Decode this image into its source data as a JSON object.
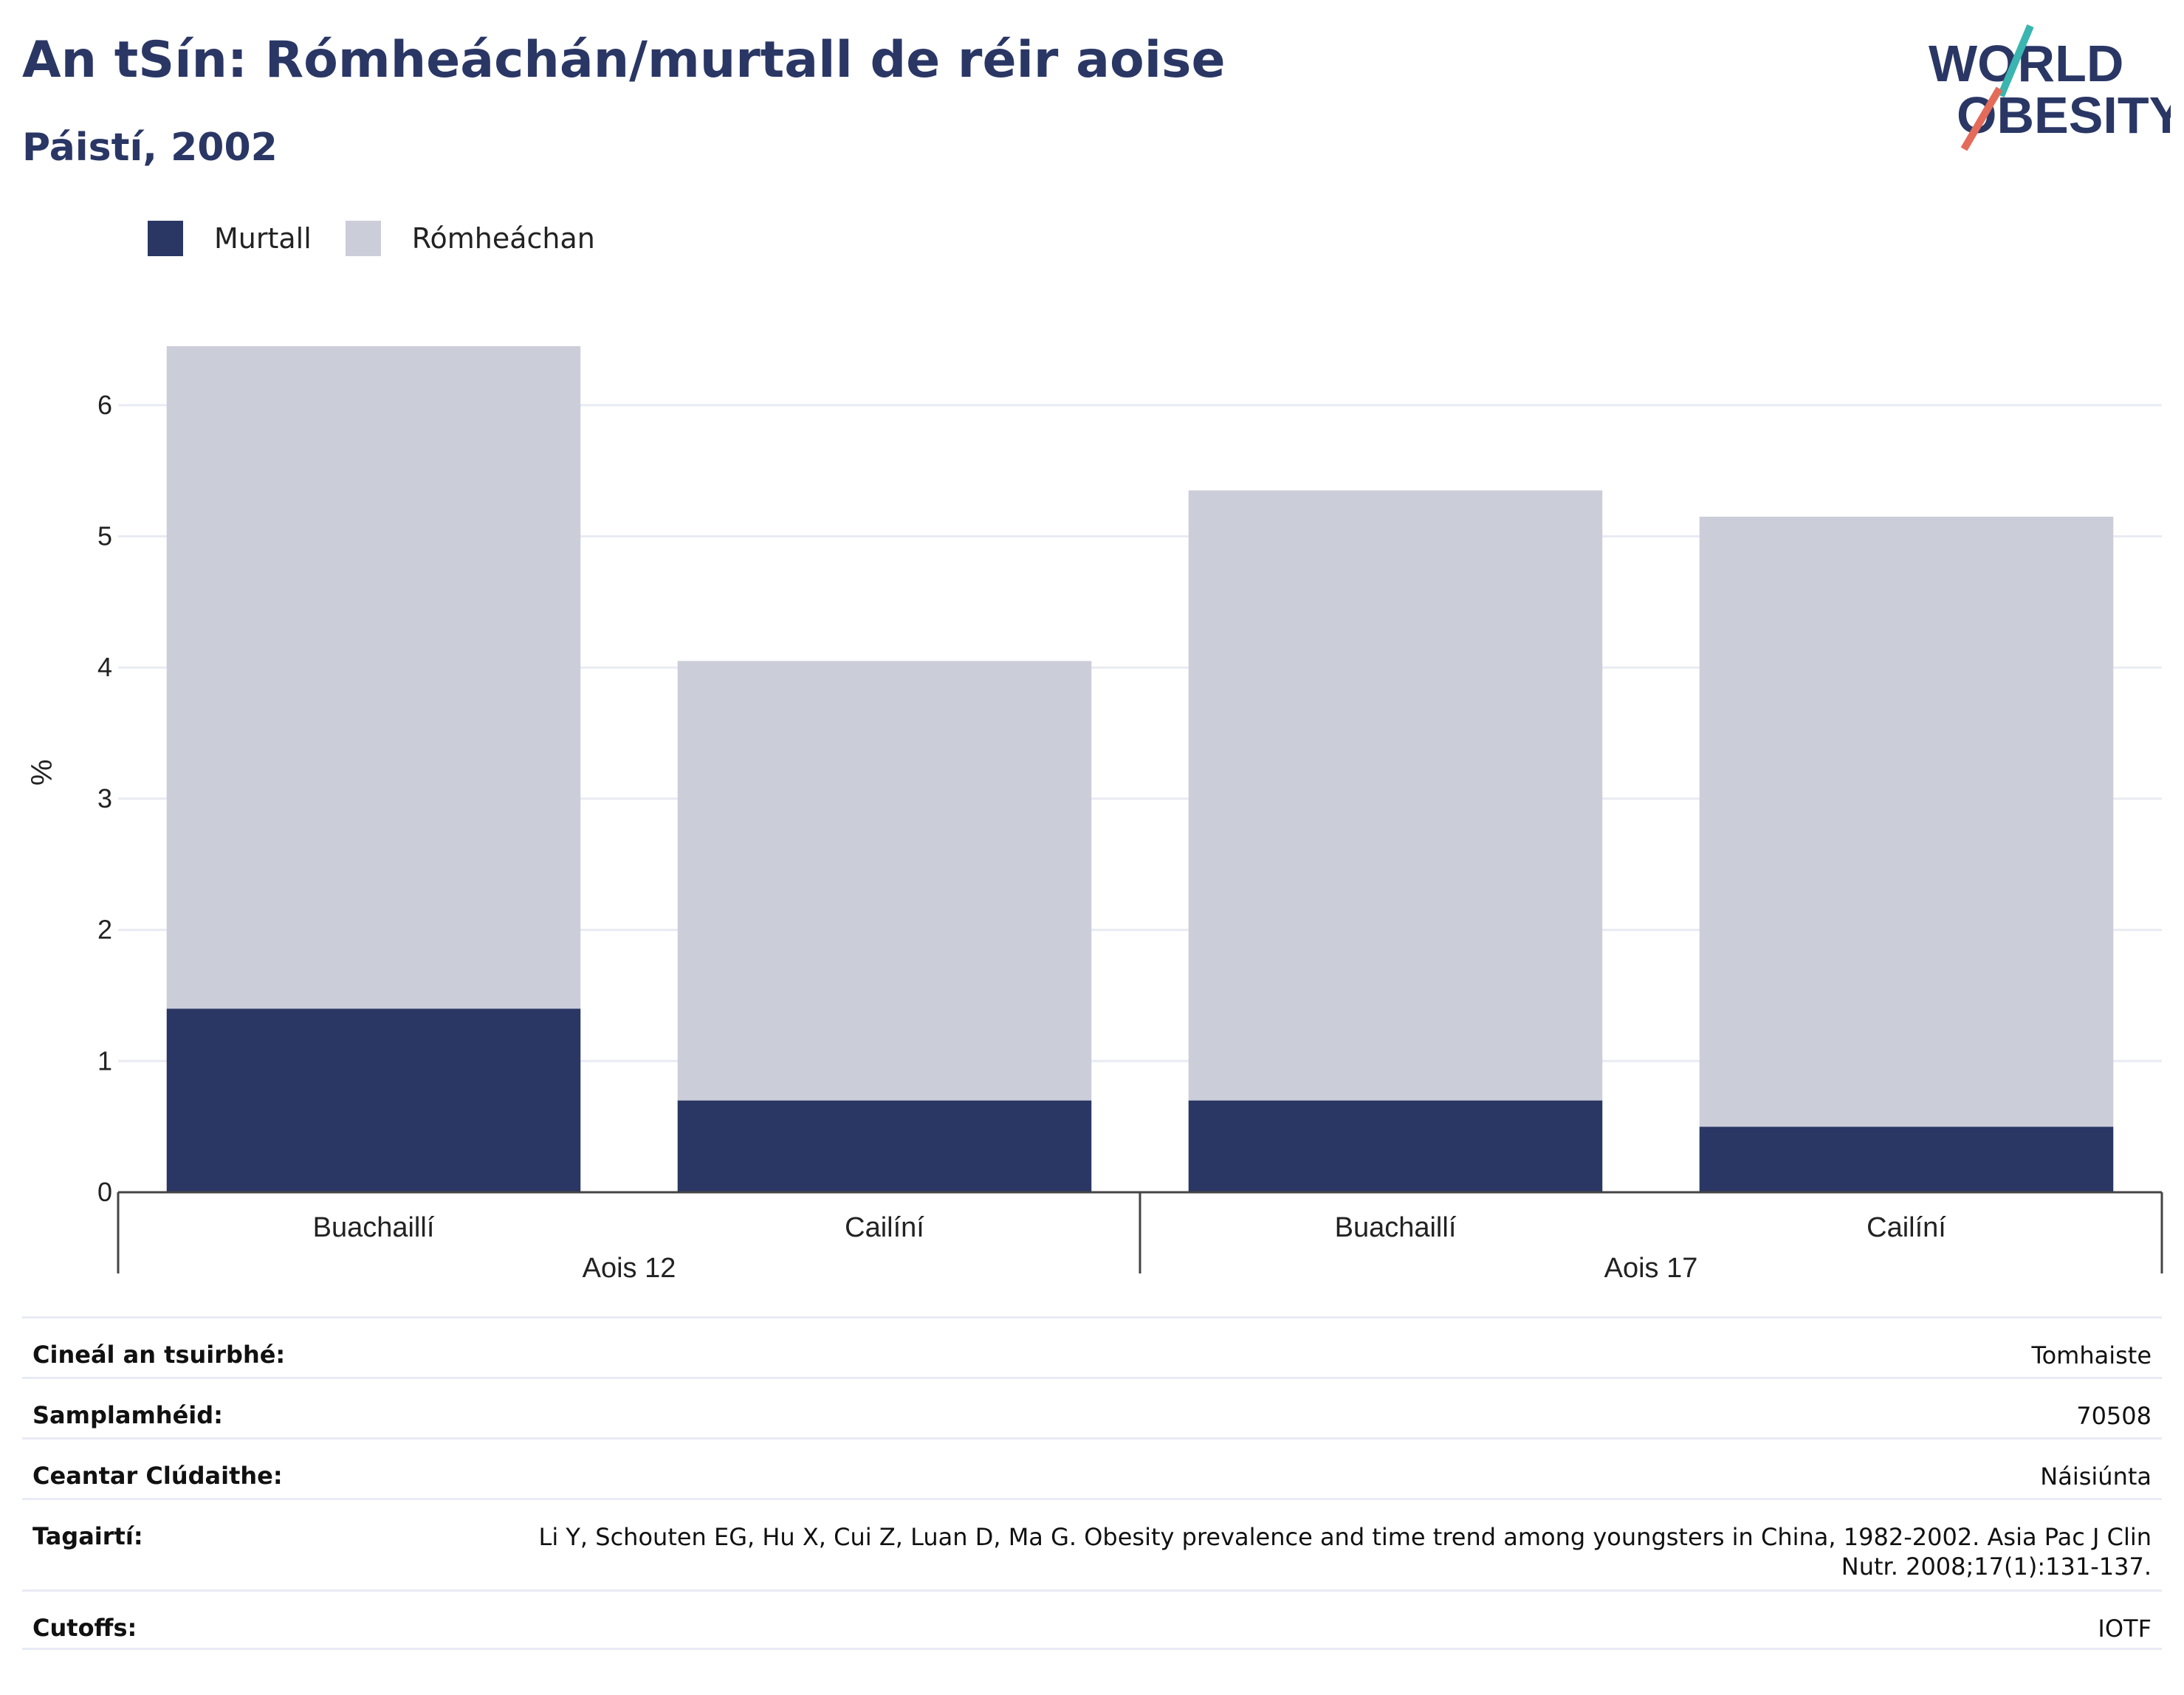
{
  "header": {
    "title": "An tSín: Rómheáchán/murtall de réir aoise",
    "subtitle": "Páistí, 2002"
  },
  "logo": {
    "line1": "WORLD",
    "line2": "OBESITY"
  },
  "legend": [
    {
      "label": "Murtall",
      "color": "#2a3765"
    },
    {
      "label": "Rómheáchan",
      "color": "#cbcdd9"
    }
  ],
  "chart_data": {
    "type": "bar",
    "stacked": true,
    "ylabel": "%",
    "ylim": [
      0,
      6.5
    ],
    "yticks": [
      0,
      1,
      2,
      3,
      4,
      5,
      6
    ],
    "grid": true,
    "legend_position": "top-left",
    "groups": [
      {
        "label": "Aois 12",
        "categories": [
          "Buachaillí",
          "Cailíní"
        ]
      },
      {
        "label": "Aois 17",
        "categories": [
          "Buachaillí",
          "Cailíní"
        ]
      }
    ],
    "categories": [
      "Buachaillí",
      "Cailíní",
      "Buachaillí",
      "Cailíní"
    ],
    "series": [
      {
        "name": "Murtall",
        "color": "#2a3765",
        "values": [
          1.4,
          0.7,
          0.7,
          0.5
        ]
      },
      {
        "name": "Rómheáchan",
        "color": "#cbcdd9",
        "values": [
          5.05,
          3.35,
          4.65,
          4.65
        ]
      }
    ]
  },
  "info": [
    {
      "label": "Cineál an tsuirbhé:",
      "value": "Tomhaiste"
    },
    {
      "label": "Samplamhéid:",
      "value": "70508"
    },
    {
      "label": "Ceantar Clúdaithe:",
      "value": "Náisiúnta"
    },
    {
      "label": "Tagairtí:",
      "value": "Li Y, Schouten EG, Hu X, Cui Z, Luan D, Ma G. Obesity prevalence and time trend among youngsters in China, 1982-2002. Asia Pac J Clin Nutr. 2008;17(1):131-137."
    },
    {
      "label": "Cutoffs:",
      "value": "IOTF"
    }
  ]
}
